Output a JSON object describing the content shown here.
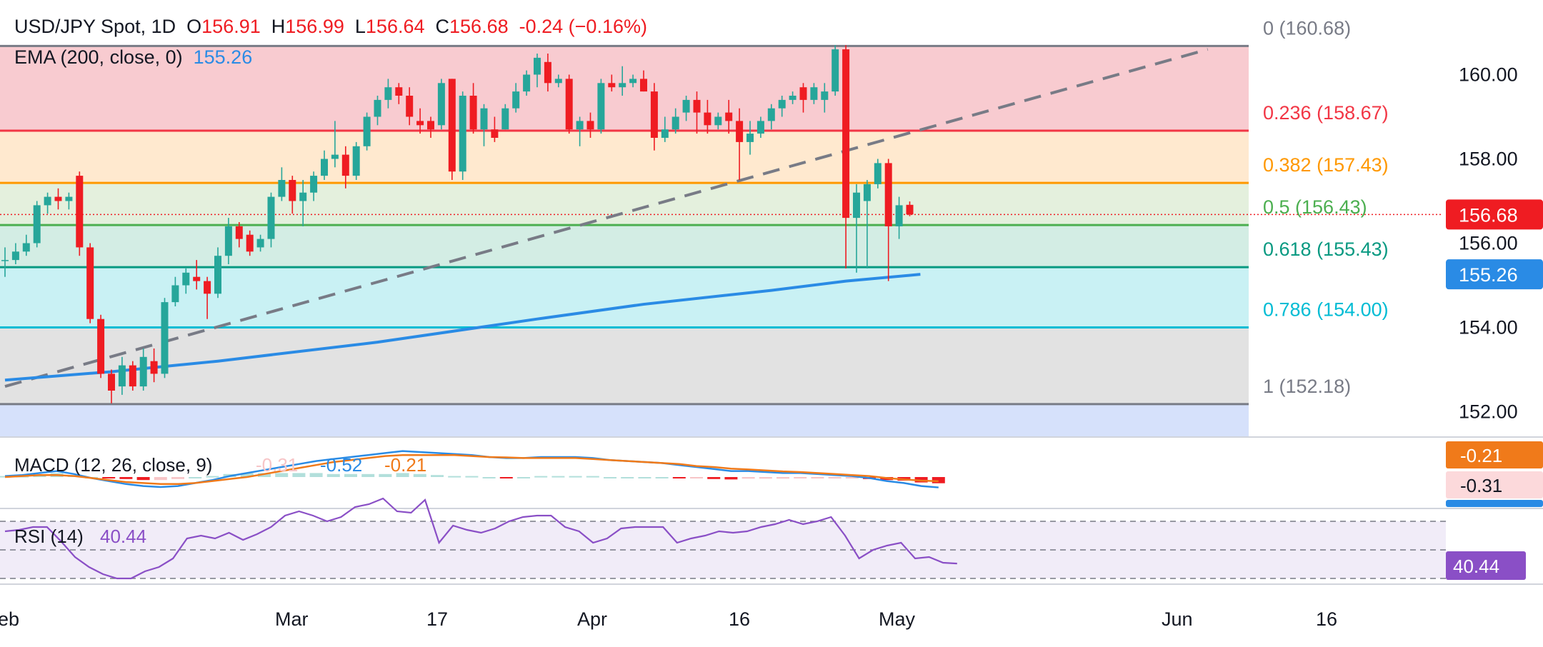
{
  "header": {
    "symbol": "USD/JPY Spot",
    "interval": "1D",
    "open_label": "O",
    "open": "156.91",
    "high_label": "H",
    "high": "156.99",
    "low_label": "L",
    "low": "156.64",
    "close_label": "C",
    "close": "156.68",
    "change": "-0.24 (−0.16%)",
    "ema_label": "EMA (200, close, 0)",
    "ema_value": "155.26"
  },
  "colors": {
    "up": "#26a69a",
    "down": "#ef1c22",
    "ema": "#2a8be5",
    "macd_line": "#2a8be5",
    "signal_line": "#f07a1a",
    "rsi": "#8a4fc6",
    "trendline": "#787b86"
  },
  "chart_data": [
    {
      "type": "candlestick",
      "title": "USD/JPY Spot, 1D",
      "x_tick_labels": [
        "eb",
        "Mar",
        "17",
        "Apr",
        "16",
        "May",
        "Jun",
        "16"
      ],
      "y_tick_labels": [
        "152.00",
        "154.00",
        "156.00",
        "158.00",
        "160.00"
      ],
      "ylim": [
        151.2,
        161.6
      ],
      "candles": [
        [
          155.6,
          155.9,
          155.2,
          155.6
        ],
        [
          155.6,
          156.0,
          155.5,
          155.8
        ],
        [
          155.8,
          156.2,
          155.7,
          156.0
        ],
        [
          156.0,
          157.0,
          155.9,
          156.9
        ],
        [
          156.9,
          157.2,
          156.7,
          157.1
        ],
        [
          157.1,
          157.3,
          156.8,
          157.0
        ],
        [
          157.0,
          157.2,
          156.8,
          157.1
        ],
        [
          157.6,
          157.7,
          155.7,
          155.9
        ],
        [
          155.9,
          156.0,
          154.1,
          154.2
        ],
        [
          154.2,
          154.3,
          152.8,
          152.9
        ],
        [
          152.9,
          153.0,
          152.2,
          152.5
        ],
        [
          152.6,
          153.3,
          152.4,
          153.1
        ],
        [
          153.1,
          153.2,
          152.5,
          152.6
        ],
        [
          152.6,
          153.5,
          152.5,
          153.3
        ],
        [
          153.2,
          153.5,
          152.7,
          152.9
        ],
        [
          152.9,
          154.7,
          152.8,
          154.6
        ],
        [
          154.6,
          155.2,
          154.5,
          155.0
        ],
        [
          155.0,
          155.4,
          154.8,
          155.3
        ],
        [
          155.2,
          155.6,
          154.9,
          155.1
        ],
        [
          155.1,
          155.2,
          154.2,
          154.8
        ],
        [
          154.8,
          155.9,
          154.7,
          155.7
        ],
        [
          155.7,
          156.6,
          155.5,
          156.4
        ],
        [
          156.4,
          156.5,
          155.9,
          156.1
        ],
        [
          156.2,
          156.3,
          155.7,
          155.8
        ],
        [
          155.9,
          156.2,
          155.8,
          156.1
        ],
        [
          156.1,
          157.2,
          155.9,
          157.1
        ],
        [
          157.1,
          157.8,
          157.0,
          157.5
        ],
        [
          157.5,
          157.6,
          156.7,
          157.0
        ],
        [
          157.0,
          157.5,
          156.4,
          157.2
        ],
        [
          157.2,
          157.7,
          157.0,
          157.6
        ],
        [
          157.6,
          158.2,
          157.5,
          158.0
        ],
        [
          158.0,
          158.9,
          157.8,
          158.1
        ],
        [
          158.1,
          158.3,
          157.3,
          157.6
        ],
        [
          157.6,
          158.4,
          157.5,
          158.3
        ],
        [
          158.3,
          159.1,
          158.2,
          159.0
        ],
        [
          159.0,
          159.5,
          158.8,
          159.4
        ],
        [
          159.4,
          159.9,
          159.2,
          159.7
        ],
        [
          159.7,
          159.8,
          159.3,
          159.5
        ],
        [
          159.5,
          159.7,
          158.8,
          159.0
        ],
        [
          158.9,
          159.2,
          158.6,
          158.8
        ],
        [
          158.9,
          159.0,
          158.5,
          158.7
        ],
        [
          158.8,
          159.9,
          158.7,
          159.8
        ],
        [
          159.9,
          159.9,
          157.5,
          157.7
        ],
        [
          157.7,
          159.6,
          157.5,
          159.5
        ],
        [
          159.5,
          159.8,
          158.6,
          158.7
        ],
        [
          158.7,
          159.3,
          158.3,
          159.2
        ],
        [
          158.7,
          159.0,
          158.4,
          158.5
        ],
        [
          158.7,
          159.3,
          158.7,
          159.2
        ],
        [
          159.2,
          159.8,
          159.1,
          159.6
        ],
        [
          159.6,
          160.1,
          159.5,
          160.0
        ],
        [
          160.0,
          160.5,
          159.7,
          160.4
        ],
        [
          160.3,
          160.5,
          159.6,
          159.8
        ],
        [
          159.8,
          160.0,
          159.7,
          159.9
        ],
        [
          159.9,
          160.0,
          158.6,
          158.7
        ],
        [
          158.7,
          159.0,
          158.3,
          158.9
        ],
        [
          158.9,
          159.1,
          158.5,
          158.7
        ],
        [
          158.7,
          159.9,
          158.6,
          159.8
        ],
        [
          159.8,
          160.0,
          159.6,
          159.7
        ],
        [
          159.7,
          160.2,
          159.5,
          159.8
        ],
        [
          159.8,
          160.0,
          159.7,
          159.9
        ],
        [
          159.9,
          160.1,
          159.6,
          159.6
        ],
        [
          159.6,
          159.8,
          158.2,
          158.5
        ],
        [
          158.5,
          159.0,
          158.4,
          158.7
        ],
        [
          158.7,
          159.2,
          158.6,
          159.0
        ],
        [
          159.1,
          159.5,
          158.9,
          159.4
        ],
        [
          159.4,
          159.6,
          158.6,
          159.1
        ],
        [
          159.1,
          159.4,
          158.6,
          158.8
        ],
        [
          158.8,
          159.1,
          158.7,
          159.0
        ],
        [
          159.1,
          159.4,
          158.6,
          158.9
        ],
        [
          158.9,
          159.2,
          157.5,
          158.4
        ],
        [
          158.4,
          158.9,
          158.1,
          158.6
        ],
        [
          158.6,
          159.0,
          158.5,
          158.9
        ],
        [
          158.9,
          159.3,
          158.7,
          159.2
        ],
        [
          159.2,
          159.5,
          159.0,
          159.4
        ],
        [
          159.4,
          159.6,
          159.3,
          159.5
        ],
        [
          159.7,
          159.8,
          159.1,
          159.4
        ],
        [
          159.4,
          159.8,
          159.3,
          159.7
        ],
        [
          159.4,
          159.8,
          159.1,
          159.6
        ],
        [
          159.6,
          160.7,
          159.5,
          160.6
        ],
        [
          160.6,
          160.7,
          155.4,
          156.6
        ],
        [
          156.6,
          157.4,
          155.3,
          157.2
        ],
        [
          157.0,
          157.5,
          155.4,
          157.4
        ],
        [
          157.4,
          158.0,
          157.3,
          157.9
        ],
        [
          157.9,
          158.0,
          155.1,
          156.4
        ],
        [
          156.4,
          157.1,
          156.1,
          156.9
        ],
        [
          156.91,
          156.99,
          156.64,
          156.68
        ]
      ],
      "ema_200": {
        "name": "EMA (200, close, 0)",
        "points": [
          [
            0,
            152.75
          ],
          [
            10,
            152.95
          ],
          [
            20,
            153.2
          ],
          [
            35,
            153.65
          ],
          [
            50,
            154.2
          ],
          [
            60,
            154.55
          ],
          [
            72,
            154.88
          ],
          [
            79,
            155.1
          ],
          [
            86,
            155.26
          ]
        ]
      },
      "trendline": {
        "from": [
          0,
          152.6
        ],
        "to": [
          113,
          160.6
        ]
      },
      "fibonacci": [
        {
          "ratio": "0",
          "price": 160.68,
          "label": "0 (160.68)",
          "color": "#787b86",
          "fill": "#f8cbd0"
        },
        {
          "ratio": "0.236",
          "price": 158.67,
          "label": "0.236 (158.67)",
          "color": "#f23645",
          "fill": "#ffe9cf"
        },
        {
          "ratio": "0.382",
          "price": 157.43,
          "label": "0.382 (157.43)",
          "color": "#ff9800",
          "fill": "#e4f0dd"
        },
        {
          "ratio": "0.5",
          "price": 156.43,
          "label": "0.5 (156.43)",
          "color": "#4caf50",
          "fill": "#d3ede4"
        },
        {
          "ratio": "0.618",
          "price": 155.43,
          "label": "0.618 (155.43)",
          "color": "#089981",
          "fill": "#c9f1f4"
        },
        {
          "ratio": "0.786",
          "price": 154.0,
          "label": "0.786 (154.00)",
          "color": "#00bcd4",
          "fill": "#e2e2e2"
        },
        {
          "ratio": "1",
          "price": 152.18,
          "label": "1 (152.18)",
          "color": "#787b86",
          "fill": "#d6e1fb"
        }
      ],
      "last_price": "156.68",
      "last_ema": "155.26"
    },
    {
      "type": "macd",
      "title": "MACD (12, 26, close, 9)",
      "values_text": [
        "-0.31",
        "-0.52",
        "-0.21"
      ],
      "axis_labels": [
        "-0.21",
        "-0.31"
      ],
      "macd": [
        0.05,
        0.1,
        0.2,
        0.3,
        0.15,
        -0.05,
        -0.2,
        -0.35,
        -0.45,
        -0.5,
        -0.45,
        -0.3,
        -0.15,
        0.05,
        0.2,
        0.35,
        0.5,
        0.65,
        0.8,
        0.9,
        1.0,
        1.1,
        1.2,
        1.3,
        1.25,
        1.2,
        1.15,
        1.1,
        1.0,
        0.95,
        0.95,
        1.0,
        1.0,
        1.0,
        0.95,
        0.85,
        0.8,
        0.75,
        0.7,
        0.6,
        0.5,
        0.4,
        0.3,
        0.3,
        0.25,
        0.2,
        0.2,
        0.15,
        0.1,
        0.05,
        -0.05,
        -0.2,
        -0.3,
        -0.45,
        -0.52
      ],
      "signal": [
        0.0,
        0.05,
        0.1,
        0.1,
        0.05,
        -0.05,
        -0.15,
        -0.25,
        -0.3,
        -0.35,
        -0.35,
        -0.3,
        -0.2,
        -0.1,
        0.0,
        0.15,
        0.3,
        0.45,
        0.6,
        0.75,
        0.85,
        0.95,
        1.05,
        1.1,
        1.1,
        1.1,
        1.1,
        1.05,
        1.0,
        0.98,
        0.95,
        0.95,
        0.95,
        0.95,
        0.9,
        0.85,
        0.8,
        0.75,
        0.7,
        0.65,
        0.55,
        0.5,
        0.42,
        0.38,
        0.33,
        0.28,
        0.25,
        0.2,
        0.15,
        0.1,
        0.05,
        -0.05,
        -0.12,
        -0.18,
        -0.21
      ],
      "histogram": [
        0.05,
        0.05,
        0.1,
        0.2,
        0.1,
        0.0,
        -0.05,
        -0.1,
        -0.15,
        -0.15,
        -0.1,
        0.0,
        0.05,
        0.15,
        0.2,
        0.2,
        0.2,
        0.2,
        0.2,
        0.15,
        0.15,
        0.15,
        0.15,
        0.2,
        0.15,
        0.1,
        0.05,
        0.05,
        0.0,
        -0.03,
        0.0,
        0.05,
        0.05,
        0.05,
        0.05,
        0.0,
        0.0,
        0.0,
        0.0,
        -0.05,
        -0.05,
        -0.1,
        -0.12,
        -0.08,
        -0.08,
        -0.08,
        -0.05,
        -0.05,
        -0.05,
        -0.05,
        -0.1,
        -0.15,
        -0.18,
        -0.27,
        -0.31
      ]
    },
    {
      "type": "line",
      "title": "RSI (14)",
      "value_text": "40.44",
      "values": [
        63,
        64,
        66,
        66,
        56,
        45,
        38,
        33,
        30,
        30,
        35,
        38,
        44,
        58,
        60,
        58,
        62,
        57,
        61,
        66,
        74,
        77,
        74,
        70,
        73,
        80,
        82,
        86,
        77,
        76,
        85,
        55,
        67,
        64,
        62,
        65,
        70,
        73,
        74,
        74,
        66,
        63,
        55,
        58,
        65,
        66,
        66,
        66,
        55,
        58,
        60,
        63,
        62,
        63,
        66,
        68,
        71,
        68,
        70,
        73,
        60,
        44,
        50,
        53,
        55,
        44,
        45,
        41,
        40.44
      ],
      "ylim": [
        0,
        100
      ],
      "bands": [
        30,
        50,
        70
      ]
    }
  ]
}
